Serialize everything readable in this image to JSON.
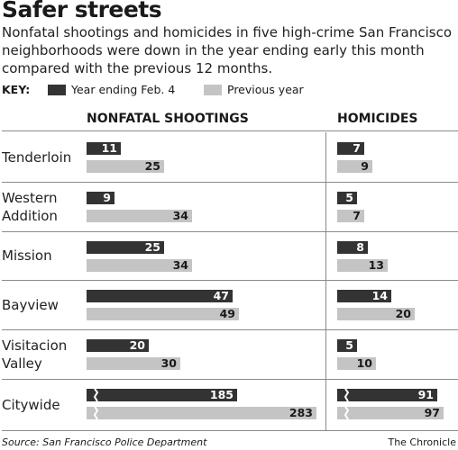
{
  "headline": "Safer streets",
  "subhead": "Nonfatal shootings and homicides in five high-crime San Francisco neighborhoods were down in the year ending early this month compared with the previous 12 months.",
  "key": {
    "label": "KEY:",
    "current": "Year ending Feb. 4",
    "previous": "Previous year",
    "current_color": "#333333",
    "previous_color": "#c4c4c4"
  },
  "columns": {
    "nonfatal": "NONFATAL SHOOTINGS",
    "homicides": "HOMICIDES"
  },
  "source": "Source: San Francisco Police Department",
  "credit": "The Chronicle",
  "chart_data": {
    "type": "bar",
    "categories": [
      [
        "Tenderloin"
      ],
      [
        "Western",
        "Addition"
      ],
      [
        "Mission"
      ],
      [
        "Bayview"
      ],
      [
        "Visitacion",
        "Valley"
      ],
      [
        "Citywide"
      ]
    ],
    "series": [
      {
        "name": "Year ending Feb. 4",
        "color": "#333333",
        "nonfatal": [
          11,
          9,
          25,
          47,
          20,
          185
        ],
        "homicides": [
          7,
          5,
          8,
          14,
          5,
          91
        ]
      },
      {
        "name": "Previous year",
        "color": "#c4c4c4",
        "nonfatal": [
          25,
          34,
          34,
          49,
          30,
          283
        ],
        "homicides": [
          9,
          7,
          13,
          20,
          10,
          97
        ]
      }
    ],
    "broken_scale_category": "Citywide"
  }
}
